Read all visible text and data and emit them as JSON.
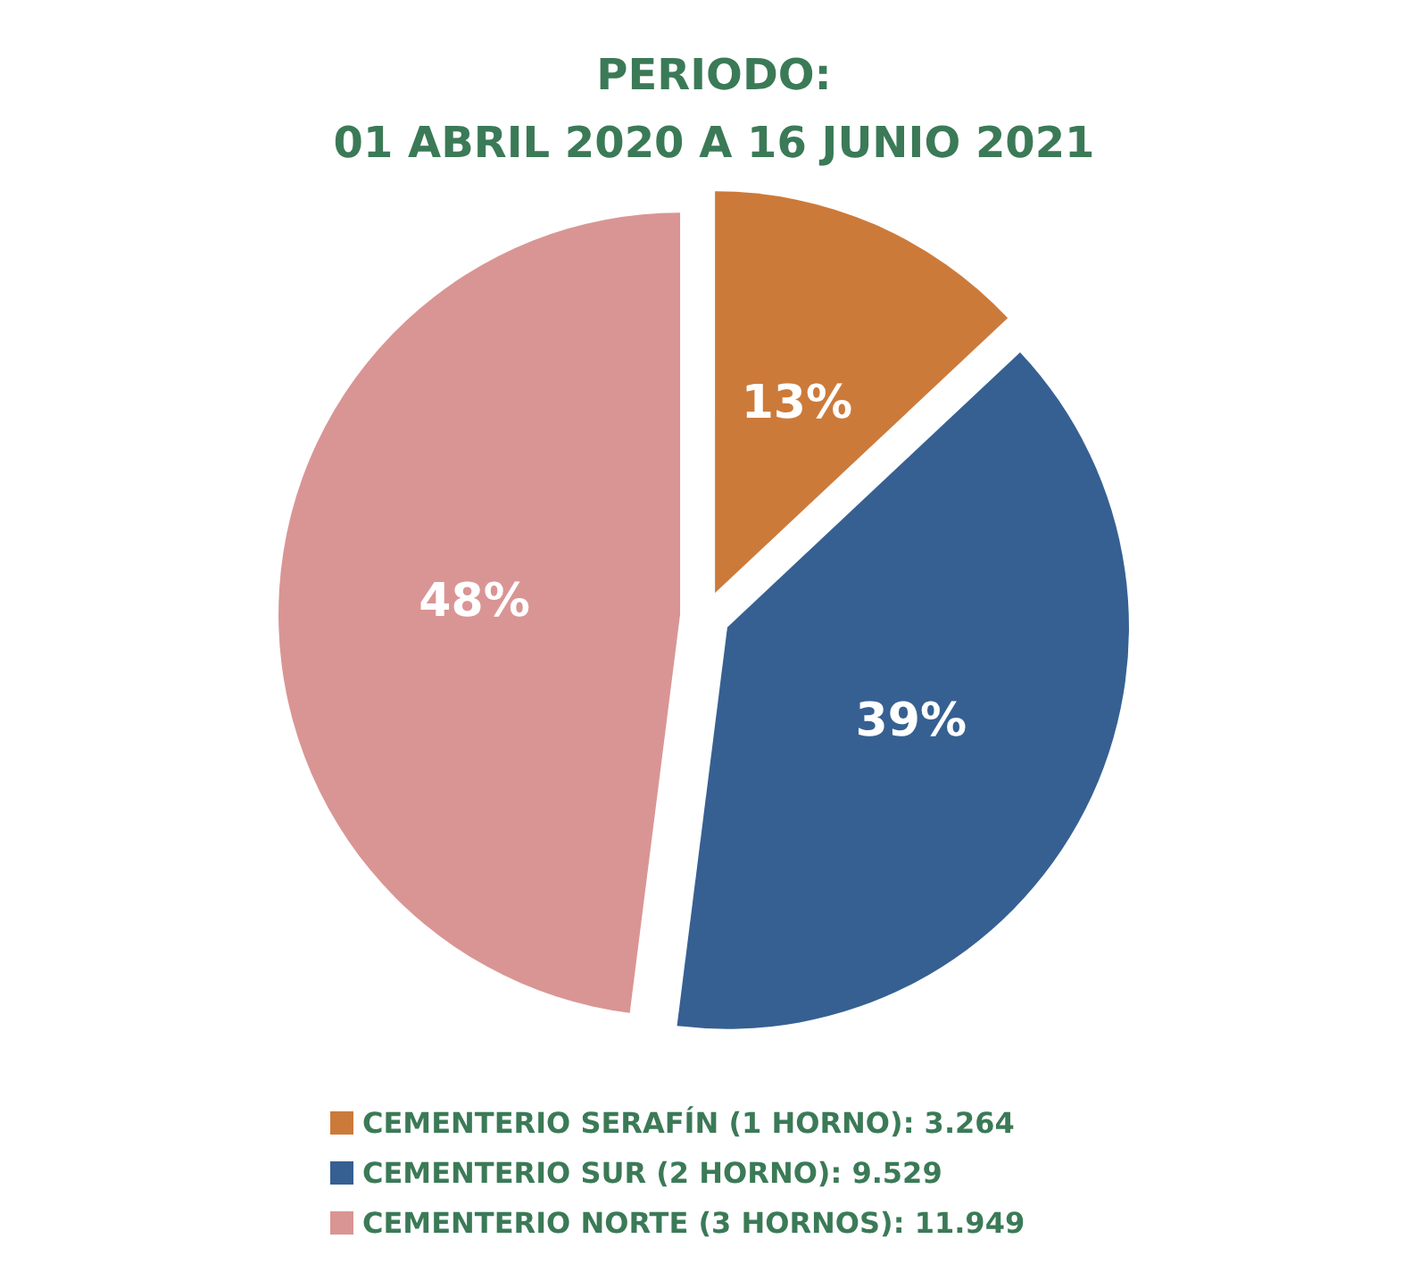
{
  "chart_data": {
    "type": "pie",
    "title": "PERIODO:",
    "subtitle": "01 ABRIL 2020 A 16 JUNIO 2021",
    "categories": [
      "CEMENTERIO SERAFÍN (1 HORNO): 3.264",
      "CEMENTERIO SUR (2 HORNO): 9.529",
      "CEMENTERIO NORTE (3 HORNOS): 11.949"
    ],
    "values": [
      13,
      39,
      48
    ],
    "colors": [
      "#cc7a3a",
      "#366092",
      "#d99594"
    ],
    "value_labels": [
      "13%",
      "39%",
      "48%"
    ],
    "legend": "bottom"
  }
}
